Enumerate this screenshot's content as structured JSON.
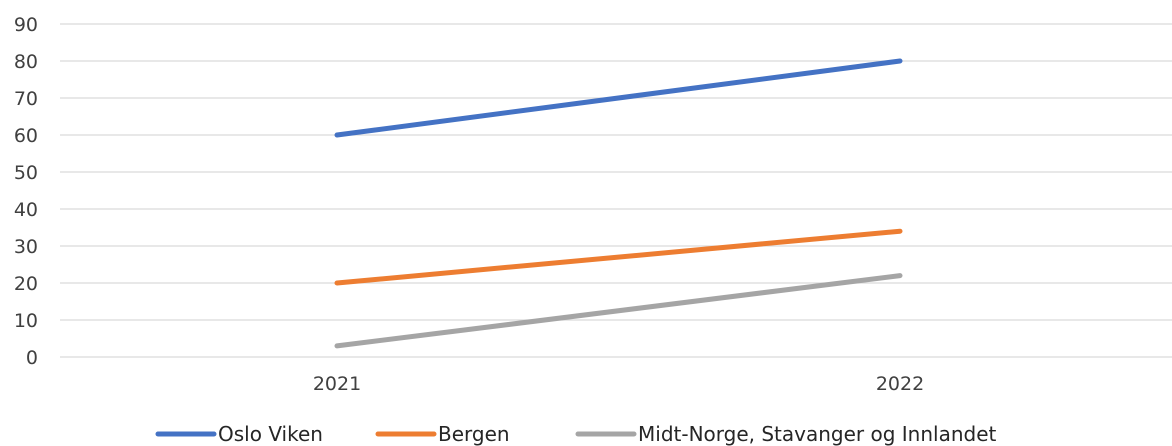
{
  "chart_data": {
    "type": "line",
    "x": [
      "2021",
      "2022"
    ],
    "ylim": [
      0,
      90
    ],
    "yticks": [
      0,
      10,
      20,
      30,
      40,
      50,
      60,
      70,
      80,
      90
    ],
    "grid": true,
    "legend_position": "bottom",
    "series": [
      {
        "name": "Oslo Viken",
        "values": [
          60,
          80
        ],
        "color": "#4472C4"
      },
      {
        "name": "Bergen",
        "values": [
          20,
          34
        ],
        "color": "#ED7D31"
      },
      {
        "name": "Midt-Norge, Stavanger og Innlandet",
        "values": [
          3,
          22
        ],
        "color": "#A5A5A5"
      }
    ]
  }
}
